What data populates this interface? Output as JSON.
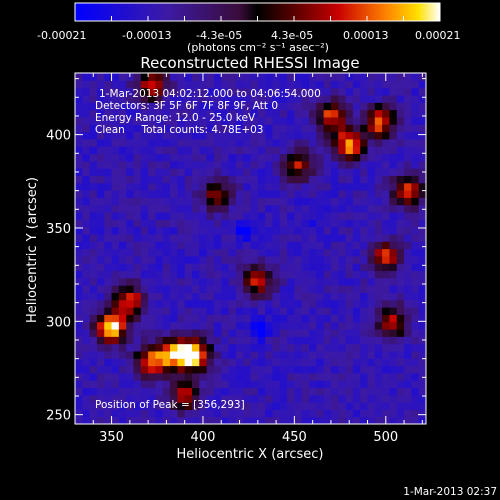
{
  "colorbar": {
    "ticks": [
      "-0.00021",
      "-0.00013",
      "-4.3e-05",
      "4.3e-05",
      "0.00013",
      "0.00021"
    ],
    "units_text": "(photons cm⁻² s⁻¹ asec⁻²)"
  },
  "chart_data": {
    "type": "heatmap",
    "title": "Reconstructed RHESSI Image",
    "xlabel": "Heliocentric X (arcsec)",
    "ylabel": "Heliocentric Y (arcsec)",
    "xlim": [
      330,
      522
    ],
    "ylim": [
      245,
      433
    ],
    "xticks": [
      350,
      400,
      450,
      500
    ],
    "yticks": [
      250,
      300,
      350,
      400
    ],
    "clim": [
      -0.00021,
      0.00021
    ],
    "colormap": "blue-purple-red-yellow-white",
    "annotations": [
      "1-Mar-2013 04:02:12.000 to 04:06:54.000",
      "Detectors: 3F 5F 6F 7F 8F 9F, Att 0",
      "Energy Range: 12.0 - 25.0 keV",
      "Clean     Total counts: 4.78E+03"
    ],
    "peak_label": "Position of Peak = [356,293]",
    "peak": [
      356,
      293
    ],
    "hot_spots": [
      {
        "x": 350,
        "y": 297,
        "level": 0.00021
      },
      {
        "x": 396,
        "y": 282,
        "level": 0.00019
      },
      {
        "x": 385,
        "y": 283,
        "level": 0.00017
      },
      {
        "x": 372,
        "y": 279,
        "level": 0.00014
      },
      {
        "x": 360,
        "y": 311,
        "level": 0.00012
      },
      {
        "x": 480,
        "y": 395,
        "level": 0.00016
      },
      {
        "x": 497,
        "y": 407,
        "level": 0.00013
      },
      {
        "x": 512,
        "y": 370,
        "level": 0.00012
      },
      {
        "x": 470,
        "y": 410,
        "level": 0.00011
      },
      {
        "x": 500,
        "y": 335,
        "level": 0.0001
      },
      {
        "x": 430,
        "y": 322,
        "level": 9e-05
      },
      {
        "x": 372,
        "y": 427,
        "level": 0.00011
      },
      {
        "x": 452,
        "y": 384,
        "level": 8e-05
      },
      {
        "x": 390,
        "y": 260,
        "level": 8e-05
      },
      {
        "x": 504,
        "y": 300,
        "level": 9e-05
      },
      {
        "x": 408,
        "y": 368,
        "level": 6e-05
      }
    ],
    "cold_spots": [
      {
        "x": 431,
        "y": 297,
        "level": -0.00019
      },
      {
        "x": 423,
        "y": 348,
        "level": -0.00013
      },
      {
        "x": 460,
        "y": 355,
        "level": -8e-05
      },
      {
        "x": 395,
        "y": 335,
        "level": -7e-05
      }
    ]
  },
  "timestamp": "1-Mar-2013 02:37"
}
